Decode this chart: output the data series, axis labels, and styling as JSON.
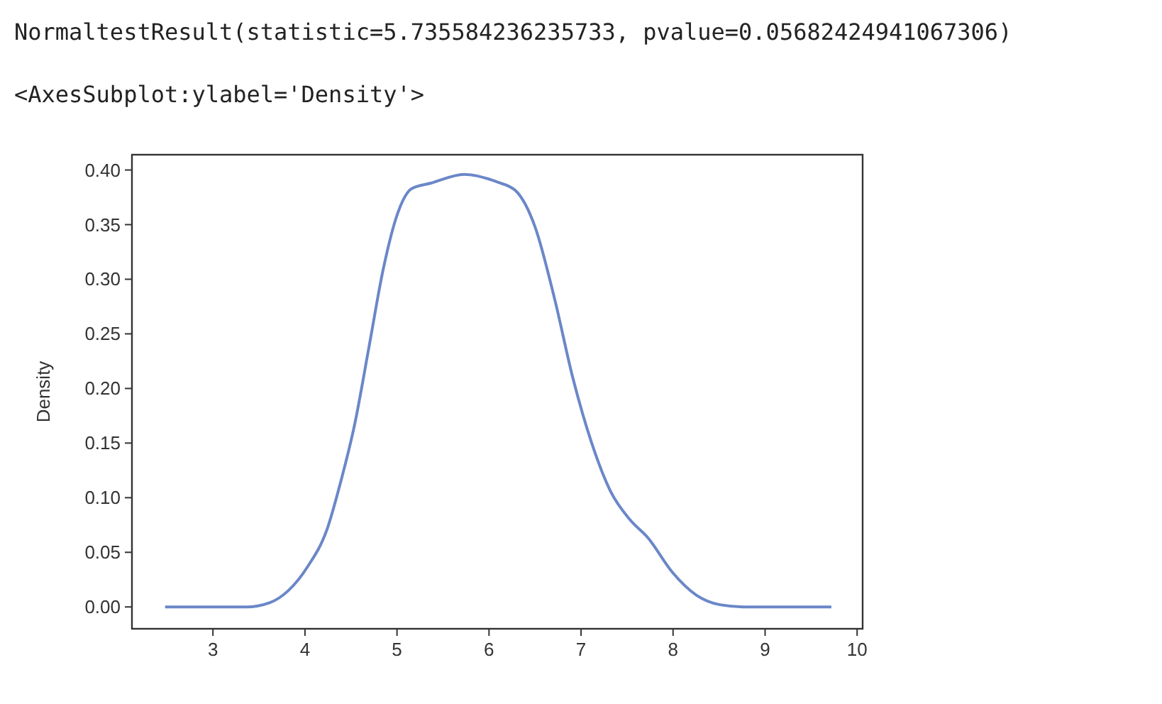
{
  "chart_data": {
    "type": "line",
    "ylabel": "Density",
    "annotations": [
      "NormaltestResult(statistic=5.735584236235733, pvalue=0.05682424941067306)",
      "<AxesSubplot:ylabel='Density'>"
    ],
    "x": [
      2.48,
      3.36,
      3.62,
      3.82,
      4.03,
      4.24,
      4.39,
      4.54,
      4.7,
      4.85,
      5.01,
      5.16,
      5.37,
      5.73,
      6.09,
      6.29,
      6.5,
      6.71,
      6.91,
      7.12,
      7.32,
      7.53,
      7.73,
      7.99,
      8.25,
      8.51,
      8.76,
      9.72
    ],
    "series": [
      {
        "color": "#6a87c8",
        "values": [
          0,
          0,
          0.004,
          0.015,
          0.037,
          0.071,
          0.115,
          0.167,
          0.24,
          0.309,
          0.361,
          0.383,
          0.388,
          0.396,
          0.389,
          0.381,
          0.348,
          0.283,
          0.21,
          0.149,
          0.106,
          0.08,
          0.063,
          0.032,
          0.011,
          0.002,
          0,
          0
        ]
      }
    ],
    "xlim": [
      2.12,
      10.06
    ],
    "xticks": [
      3,
      4,
      5,
      6,
      7,
      8,
      9,
      10
    ],
    "ylim": [
      -0.02,
      0.414
    ],
    "yticks": [
      {
        "value": 0,
        "label": "0.00"
      },
      {
        "value": 0.05,
        "label": "0.05"
      },
      {
        "value": 0.1,
        "label": "0.10"
      },
      {
        "value": 0.15,
        "label": "0.15"
      },
      {
        "value": 0.2,
        "label": "0.20"
      },
      {
        "value": 0.25,
        "label": "0.25"
      },
      {
        "value": 0.3,
        "label": "0.30"
      },
      {
        "value": 0.35,
        "label": "0.35"
      },
      {
        "value": 0.4,
        "label": "0.40"
      }
    ],
    "grid": false,
    "line_style": "solid",
    "marker": "none"
  }
}
